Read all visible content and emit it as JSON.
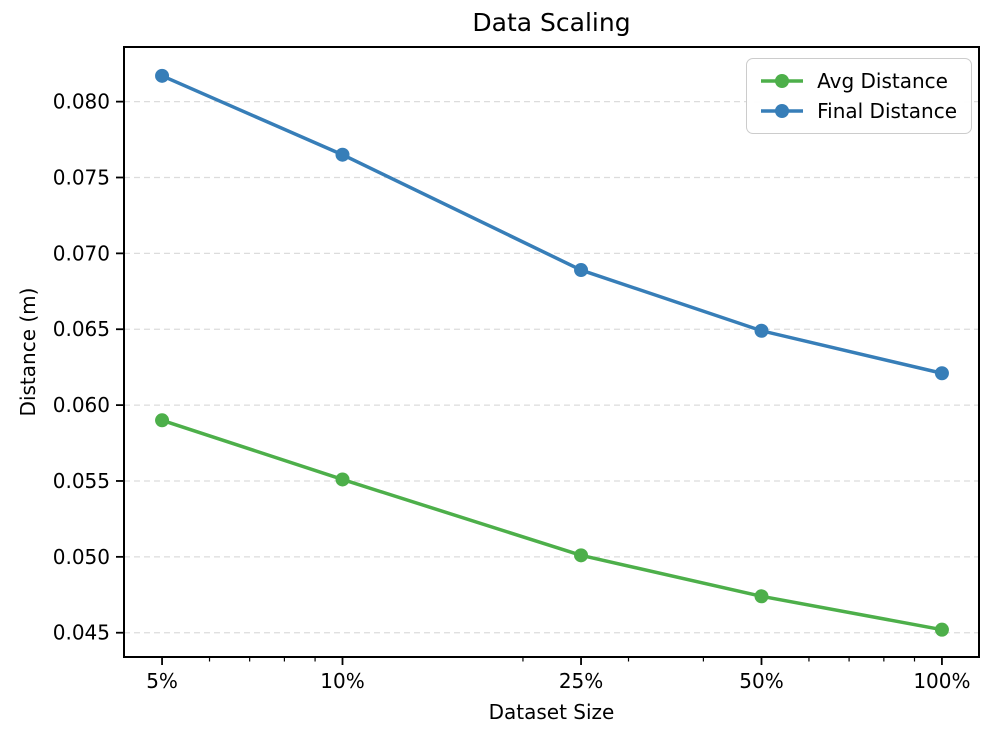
{
  "chart_data": {
    "type": "line",
    "title": "Data Scaling",
    "xlabel": "Dataset Size",
    "ylabel": "Distance (m)",
    "x_scale": "log",
    "x": [
      5,
      10,
      25,
      50,
      100
    ],
    "x_tick_labels": [
      "5%",
      "10%",
      "25%",
      "50%",
      "100%"
    ],
    "x_minor_ticks": [
      6,
      7,
      8,
      9,
      20,
      30,
      40,
      60,
      70,
      80,
      90
    ],
    "xlim": [
      4.32,
      115.3
    ],
    "y_ticks": [
      0.045,
      0.05,
      0.055,
      0.06,
      0.065,
      0.07,
      0.075,
      0.08
    ],
    "y_tick_labels": [
      "0.045",
      "0.050",
      "0.055",
      "0.060",
      "0.065",
      "0.070",
      "0.075",
      "0.080"
    ],
    "ylim": [
      0.0434,
      0.0836
    ],
    "grid": {
      "axis": "y",
      "style": "dashed",
      "color": "#dcdcdc"
    },
    "legend": {
      "position": "upper right"
    },
    "series": [
      {
        "name": "Avg Distance",
        "color": "#4daf4a",
        "values": [
          0.059,
          0.0551,
          0.0501,
          0.0474,
          0.0452
        ]
      },
      {
        "name": "Final Distance",
        "color": "#377eb8",
        "values": [
          0.0817,
          0.0765,
          0.0689,
          0.0649,
          0.0621
        ]
      }
    ]
  }
}
